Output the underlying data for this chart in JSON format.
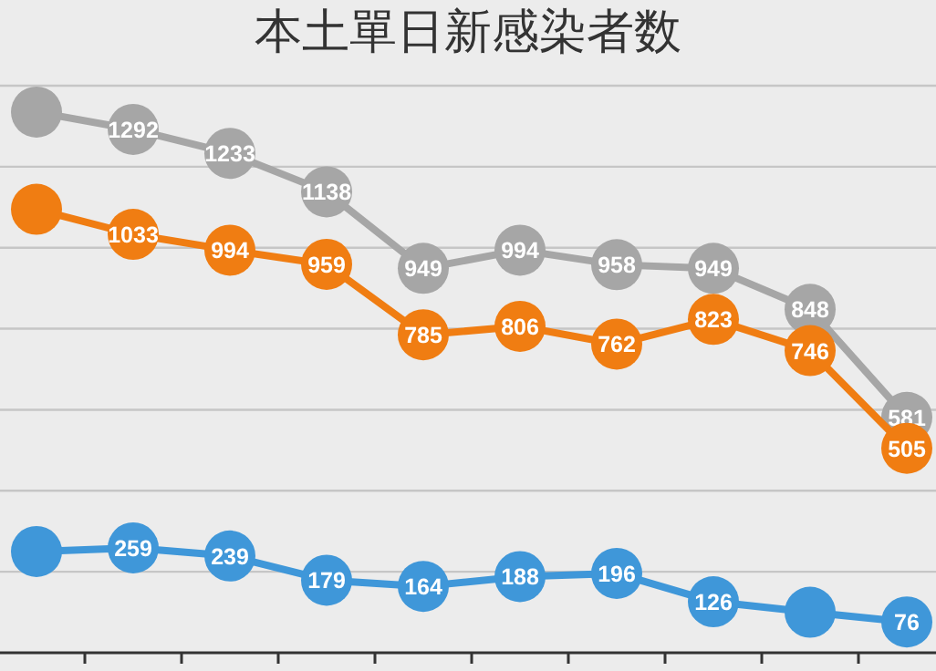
{
  "chart_data": {
    "type": "line",
    "title": "本土單日新感染者数",
    "categories": [
      null,
      null,
      null,
      null,
      null,
      null,
      null,
      null,
      null,
      null
    ],
    "series": [
      {
        "color": "#a6a6a6",
        "values": [
          1335,
          1292,
          1233,
          1138,
          949,
          994,
          958,
          949,
          848,
          581
        ],
        "value_labels": [
          null,
          "1292",
          "1233",
          "1138",
          "949",
          "994",
          "958",
          "949",
          "848",
          "581"
        ]
      },
      {
        "color": "#f07d12",
        "values": [
          1095,
          1033,
          994,
          959,
          785,
          806,
          762,
          823,
          746,
          505
        ],
        "value_labels": [
          null,
          "1033",
          "994",
          "959",
          "785",
          "806",
          "762",
          "823",
          "746",
          "505"
        ]
      },
      {
        "color": "#3f97d9",
        "values": [
          250,
          259,
          239,
          179,
          164,
          188,
          196,
          126,
          100,
          76
        ],
        "value_labels": [
          null,
          "259",
          "239",
          "179",
          "164",
          "188",
          "196",
          "126",
          null,
          "76"
        ]
      }
    ],
    "yticks": [
      {
        "value": 0,
        "label": null
      },
      {
        "value": 200,
        "label": null
      },
      {
        "value": 400,
        "label": null
      },
      {
        "value": 600,
        "label": null
      },
      {
        "value": 800,
        "label": null
      },
      {
        "value": 1000,
        "label": null
      },
      {
        "value": 1200,
        "label": null
      },
      {
        "value": 1400,
        "label": null
      }
    ],
    "grid": "y",
    "marker": "circle"
  }
}
